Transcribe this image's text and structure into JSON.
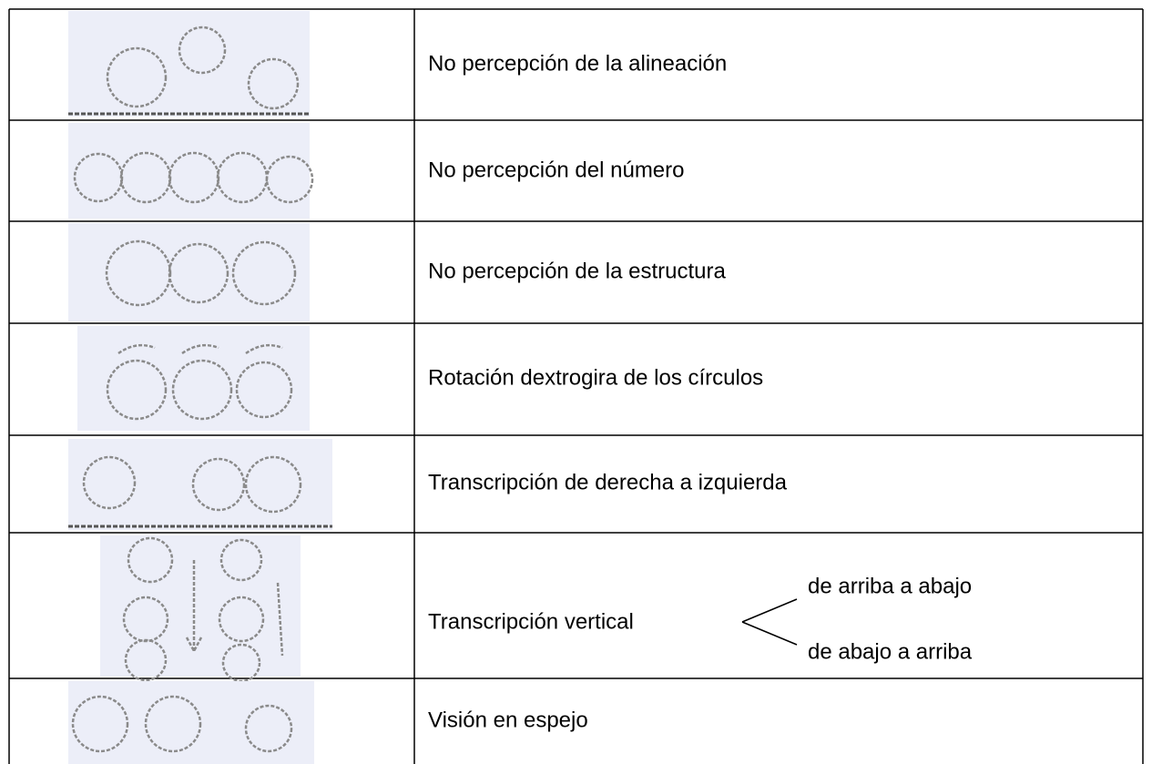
{
  "table": {
    "rows": [
      {
        "text": "No percepción de la alineación"
      },
      {
        "text": "No percepción del número"
      },
      {
        "text": "No percepción de la estructura"
      },
      {
        "text": "Rotación dextrogira de los círculos"
      },
      {
        "text": "Transcripción de derecha a izquierda"
      },
      {
        "text": "Transcripción vertical",
        "branches": [
          "de arriba a abajo",
          "de abajo a arriba"
        ]
      },
      {
        "text": "Visión en espejo"
      }
    ]
  }
}
